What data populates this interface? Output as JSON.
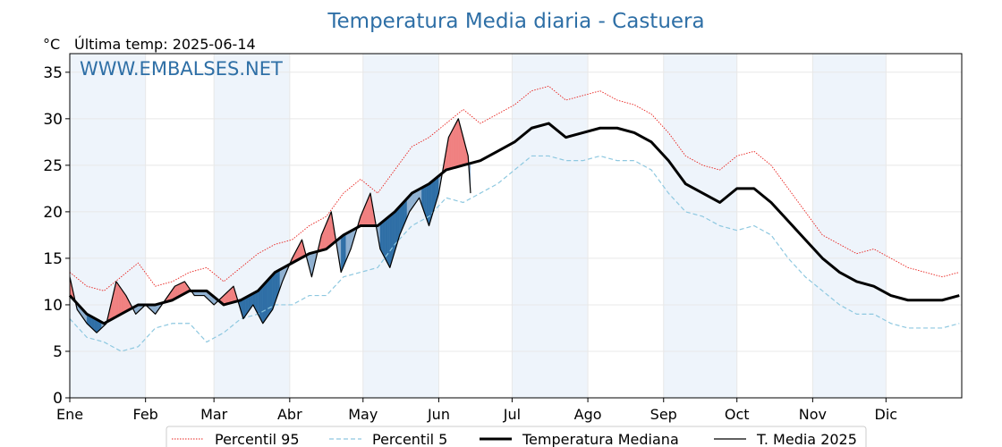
{
  "title": "Temperatura Media diaria - Castuera",
  "unit": "°C",
  "last_temp": "Última temp: 2025-06-14",
  "watermark": "WWW.EMBALSES.NET",
  "colors": {
    "title": "#2e6fa6",
    "watermark": "#2e6fa6",
    "p95": "#e8211d",
    "p5": "#8ec8e0",
    "median": "#000000",
    "actual": "#000000",
    "above": "#f08080",
    "below_light": "#8fb0d0",
    "below_dark": "#2f6fa6",
    "band": "#eef4fb"
  },
  "chart_data": {
    "type": "line",
    "title": "Temperatura Media diaria - Castuera",
    "ylabel": "°C",
    "ylim": [
      0,
      37
    ],
    "yticks": [
      0,
      5,
      10,
      15,
      20,
      25,
      30,
      35
    ],
    "xlim": [
      1,
      366
    ],
    "month_labels": [
      "Ene",
      "Feb",
      "Mar",
      "Abr",
      "May",
      "Jun",
      "Jul",
      "Ago",
      "Sep",
      "Oct",
      "Nov",
      "Dic"
    ],
    "month_starts": [
      1,
      32,
      60,
      91,
      121,
      152,
      182,
      213,
      244,
      274,
      305,
      335
    ],
    "grid": true,
    "legend_position": "bottom",
    "series": [
      {
        "name": "Percentil 95",
        "key": "p95",
        "style": "dotted-red",
        "x": [
          1,
          8,
          15,
          22,
          29,
          36,
          43,
          50,
          57,
          64,
          71,
          78,
          85,
          92,
          99,
          106,
          113,
          120,
          127,
          134,
          141,
          148,
          155,
          162,
          169,
          176,
          183,
          190,
          197,
          204,
          211,
          218,
          225,
          232,
          239,
          246,
          253,
          260,
          267,
          274,
          281,
          288,
          295,
          302,
          309,
          316,
          323,
          330,
          337,
          344,
          351,
          358,
          365
        ],
        "values": [
          13.5,
          12.0,
          11.5,
          13.0,
          14.5,
          12.0,
          12.5,
          13.5,
          14.0,
          12.5,
          14.0,
          15.5,
          16.5,
          17.0,
          18.5,
          19.5,
          22.0,
          23.5,
          22.0,
          24.5,
          27.0,
          28.0,
          29.5,
          31.0,
          29.5,
          30.5,
          31.5,
          33.0,
          33.5,
          32.0,
          32.5,
          33.0,
          32.0,
          31.5,
          30.5,
          28.5,
          26.0,
          25.0,
          24.5,
          26.0,
          26.5,
          25.0,
          22.5,
          20.0,
          17.5,
          16.5,
          15.5,
          16.0,
          15.0,
          14.0,
          13.5,
          13.0,
          13.5
        ]
      },
      {
        "name": "Percentil 5",
        "key": "p5",
        "style": "dashed-lightblue",
        "x": [
          1,
          8,
          15,
          22,
          29,
          36,
          43,
          50,
          57,
          64,
          71,
          78,
          85,
          92,
          99,
          106,
          113,
          120,
          127,
          134,
          141,
          148,
          155,
          162,
          169,
          176,
          183,
          190,
          197,
          204,
          211,
          218,
          225,
          232,
          239,
          246,
          253,
          260,
          267,
          274,
          281,
          288,
          295,
          302,
          309,
          316,
          323,
          330,
          337,
          344,
          351,
          358,
          365
        ],
        "values": [
          8.5,
          6.5,
          6.0,
          5.0,
          5.5,
          7.5,
          8.0,
          8.0,
          6.0,
          7.0,
          8.5,
          9.0,
          10.0,
          10.0,
          11.0,
          11.0,
          13.0,
          13.5,
          14.0,
          16.5,
          18.5,
          19.5,
          21.5,
          21.0,
          22.0,
          23.0,
          24.5,
          26.0,
          26.0,
          25.5,
          25.5,
          26.0,
          25.5,
          25.5,
          24.5,
          22.0,
          20.0,
          19.5,
          18.5,
          18.0,
          18.5,
          17.5,
          15.0,
          13.0,
          11.5,
          10.0,
          9.0,
          9.0,
          8.0,
          7.5,
          7.5,
          7.5,
          8.0
        ]
      },
      {
        "name": "Temperatura Mediana",
        "key": "median",
        "style": "thick-black",
        "x": [
          1,
          8,
          15,
          22,
          29,
          36,
          43,
          50,
          57,
          64,
          71,
          78,
          85,
          92,
          99,
          106,
          113,
          120,
          127,
          134,
          141,
          148,
          155,
          162,
          169,
          176,
          183,
          190,
          197,
          204,
          211,
          218,
          225,
          232,
          239,
          246,
          253,
          260,
          267,
          274,
          281,
          288,
          295,
          302,
          309,
          316,
          323,
          330,
          337,
          344,
          351,
          358,
          365
        ],
        "values": [
          11.0,
          9.0,
          8.0,
          9.0,
          10.0,
          10.0,
          10.5,
          11.5,
          11.5,
          10.0,
          10.5,
          11.5,
          13.5,
          14.5,
          15.5,
          16.0,
          17.5,
          18.5,
          18.5,
          20.0,
          22.0,
          23.0,
          24.5,
          25.0,
          25.5,
          26.5,
          27.5,
          29.0,
          29.5,
          28.0,
          28.5,
          29.0,
          29.0,
          28.5,
          27.5,
          25.5,
          23.0,
          22.0,
          21.0,
          22.5,
          22.5,
          21.0,
          19.0,
          17.0,
          15.0,
          13.5,
          12.5,
          12.0,
          11.0,
          10.5,
          10.5,
          10.5,
          11.0
        ]
      },
      {
        "name": "T. Media 2025",
        "key": "actual",
        "style": "thin-black",
        "x": [
          1,
          4,
          8,
          12,
          16,
          20,
          24,
          28,
          32,
          36,
          40,
          44,
          48,
          52,
          56,
          60,
          64,
          68,
          72,
          76,
          80,
          84,
          88,
          92,
          96,
          100,
          104,
          108,
          112,
          116,
          120,
          124,
          128,
          132,
          136,
          140,
          144,
          148,
          152,
          156,
          160,
          164,
          165
        ],
        "values": [
          13.0,
          9.5,
          8.0,
          7.0,
          8.0,
          12.5,
          11.0,
          9.0,
          10.0,
          9.0,
          10.5,
          12.0,
          12.5,
          11.0,
          11.0,
          10.0,
          11.0,
          12.0,
          8.5,
          10.0,
          8.0,
          9.5,
          12.5,
          15.0,
          17.0,
          13.0,
          17.5,
          20.0,
          13.5,
          16.0,
          19.5,
          22.0,
          16.0,
          14.0,
          17.5,
          20.0,
          21.5,
          18.5,
          22.0,
          28.0,
          30.0,
          26.0,
          22.0
        ]
      }
    ]
  },
  "legend": {
    "p95": "Percentil 95",
    "p5": "Percentil 5",
    "median": "Temperatura Mediana",
    "actual": "T. Media 2025"
  }
}
